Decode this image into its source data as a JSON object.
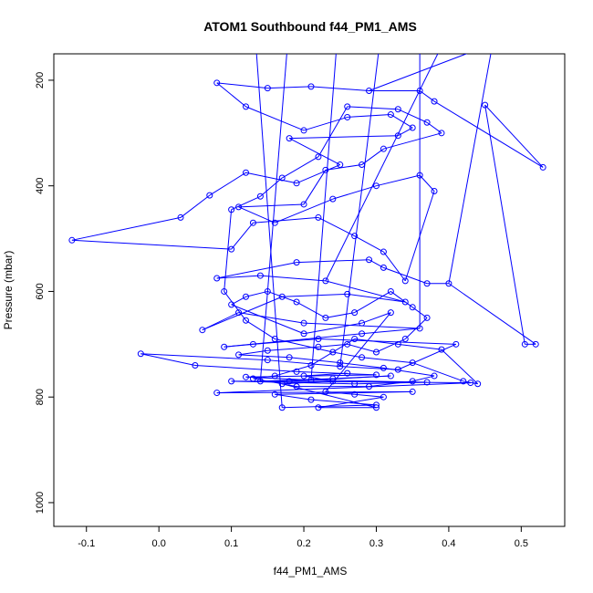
{
  "chart_data": {
    "type": "line",
    "title": "ATOM1 Southbound f44_PM1_AMS",
    "xlabel": "f44_PM1_AMS",
    "ylabel": "Pressure (mbar)",
    "xlim": [
      -0.145,
      0.56
    ],
    "ylim": [
      1045,
      150
    ],
    "y_inverted": true,
    "x_ticks": [
      -0.1,
      0.0,
      0.1,
      0.2,
      0.3,
      0.4,
      0.5
    ],
    "x_tick_labels": [
      "-0.1",
      "0.0",
      "0.1",
      "0.2",
      "0.3",
      "0.4",
      "0.5"
    ],
    "y_ticks": [
      200,
      400,
      600,
      800,
      1000
    ],
    "y_tick_labels": [
      "200",
      "400",
      "600",
      "800",
      "1000"
    ],
    "grid": false,
    "legend": "none",
    "series_color": "#0000ff",
    "marker": "open-circle",
    "series": [
      {
        "values_note": "",
        "points": [
          [
            0.17,
            820
          ],
          [
            0.3,
            815
          ],
          [
            0.21,
            805
          ],
          [
            0.16,
            795
          ],
          [
            0.35,
            790
          ],
          [
            0.08,
            792
          ],
          [
            0.43,
            773
          ],
          [
            0.14,
            770
          ],
          [
            0.24,
            765
          ],
          [
            0.32,
            760
          ],
          [
            0.18,
            770
          ],
          [
            0.1,
            770
          ],
          [
            0.27,
            775
          ],
          [
            0.37,
            772
          ],
          [
            0.21,
            768
          ],
          [
            0.12,
            762
          ],
          [
            0.3,
            758
          ],
          [
            0.19,
            752
          ],
          [
            0.05,
            740
          ],
          [
            -0.025,
            718
          ],
          [
            0.15,
            730
          ],
          [
            0.25,
            742
          ],
          [
            0.33,
            748
          ],
          [
            0.41,
            700
          ],
          [
            0.22,
            690
          ],
          [
            0.13,
            700
          ],
          [
            0.09,
            705
          ],
          [
            0.28,
            680
          ],
          [
            0.36,
            670
          ],
          [
            0.2,
            660
          ],
          [
            0.11,
            640
          ],
          [
            0.06,
            673
          ],
          [
            0.17,
            610
          ],
          [
            0.26,
            605
          ],
          [
            0.34,
            620
          ],
          [
            0.23,
            580
          ],
          [
            0.14,
            570
          ],
          [
            0.08,
            575
          ],
          [
            0.19,
            545
          ],
          [
            0.29,
            540
          ],
          [
            0.31,
            555
          ],
          [
            0.37,
            585
          ],
          [
            0.4,
            585
          ],
          [
            0.52,
            700
          ],
          [
            0.505,
            700
          ],
          [
            0.45,
            247
          ],
          [
            0.53,
            365
          ],
          [
            0.38,
            240
          ],
          [
            0.36,
            220
          ],
          [
            0.29,
            220
          ],
          [
            0.21,
            212
          ],
          [
            0.15,
            215
          ],
          [
            0.08,
            205
          ],
          [
            0.12,
            250
          ],
          [
            0.2,
            295
          ],
          [
            0.26,
            270
          ],
          [
            0.32,
            265
          ],
          [
            0.35,
            290
          ],
          [
            0.33,
            305
          ],
          [
            0.18,
            310
          ],
          [
            0.25,
            360
          ],
          [
            0.19,
            395
          ],
          [
            0.12,
            375
          ],
          [
            0.07,
            418
          ],
          [
            0.03,
            460
          ],
          [
            -0.12,
            503
          ],
          [
            0.1,
            520
          ],
          [
            0.13,
            470
          ],
          [
            0.22,
            460
          ],
          [
            0.27,
            495
          ],
          [
            0.31,
            525
          ],
          [
            0.34,
            580
          ],
          [
            0.38,
            410
          ],
          [
            0.36,
            380
          ],
          [
            0.3,
            400
          ],
          [
            0.24,
            425
          ],
          [
            0.16,
            470
          ],
          [
            0.11,
            440
          ],
          [
            0.2,
            435
          ],
          [
            0.23,
            370
          ],
          [
            0.28,
            360
          ],
          [
            0.31,
            330
          ],
          [
            0.39,
            300
          ],
          [
            0.37,
            280
          ],
          [
            0.33,
            255
          ],
          [
            0.26,
            250
          ],
          [
            0.22,
            345
          ],
          [
            0.17,
            385
          ],
          [
            0.14,
            420
          ],
          [
            0.1,
            445
          ],
          [
            0.09,
            600
          ],
          [
            0.12,
            655
          ],
          [
            0.16,
            690
          ],
          [
            0.24,
            715
          ],
          [
            0.28,
            725
          ],
          [
            0.35,
            735
          ],
          [
            0.42,
            770
          ],
          [
            0.44,
            775
          ],
          [
            0.39,
            710
          ],
          [
            0.33,
            700
          ],
          [
            0.27,
            690
          ],
          [
            0.21,
            740
          ],
          [
            0.16,
            760
          ],
          [
            0.13,
            765
          ],
          [
            0.19,
            780
          ],
          [
            0.29,
            780
          ],
          [
            0.35,
            770
          ],
          [
            0.38,
            760
          ],
          [
            0.31,
            745
          ],
          [
            0.25,
            735
          ],
          [
            0.18,
            725
          ],
          [
            0.11,
            720
          ],
          [
            0.15,
            712
          ],
          [
            0.22,
            705
          ],
          [
            0.26,
            700
          ],
          [
            0.3,
            715
          ],
          [
            0.34,
            690
          ],
          [
            0.37,
            650
          ],
          [
            0.35,
            630
          ],
          [
            0.32,
            600
          ],
          [
            0.27,
            640
          ],
          [
            0.23,
            650
          ],
          [
            0.19,
            620
          ],
          [
            0.15,
            600
          ],
          [
            0.12,
            610
          ],
          [
            0.1,
            625
          ],
          [
            0.2,
            680
          ],
          [
            0.28,
            660
          ],
          [
            0.32,
            640
          ],
          [
            0.23,
            790
          ],
          [
            0.27,
            795
          ],
          [
            0.31,
            800
          ],
          [
            0.22,
            820
          ],
          [
            0.3,
            820
          ],
          [
            0.17,
            775
          ],
          [
            0.24,
            770
          ],
          [
            0.2,
            760
          ],
          [
            0.26,
            755
          ]
        ]
      }
    ]
  }
}
